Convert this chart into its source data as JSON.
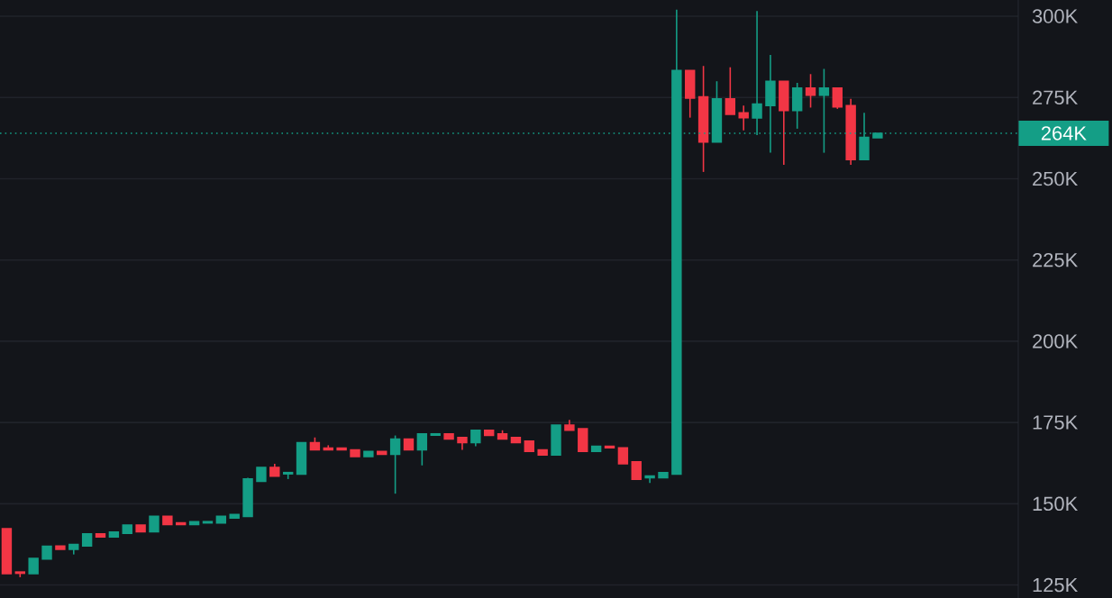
{
  "chart_data": {
    "type": "candlestick",
    "categories": [
      null,
      null,
      null,
      null,
      null,
      null,
      null,
      null,
      null,
      null,
      null,
      null,
      null,
      null,
      null,
      null,
      null,
      null,
      null,
      null,
      null,
      null,
      null,
      null,
      null,
      null,
      null,
      null,
      null,
      null,
      null,
      null,
      null,
      null,
      null,
      null,
      null,
      null,
      null,
      null,
      null,
      null,
      null,
      null,
      null,
      null,
      null,
      null,
      null,
      null,
      null,
      null,
      null,
      null,
      null,
      null,
      null,
      null,
      null,
      null,
      null,
      null,
      null,
      null,
      null,
      null,
      null,
      null,
      null,
      null,
      null,
      null,
      null,
      null,
      null,
      null
    ],
    "ohlc": [
      [
        142.3,
        142.3,
        128.5,
        128.5
      ],
      [
        129.0,
        129.0,
        127.4,
        128.6
      ],
      [
        128.5,
        133.2,
        128.5,
        133.2
      ],
      [
        133.0,
        136.9,
        133.0,
        136.9
      ],
      [
        137.0,
        137.0,
        136.0,
        136.0
      ],
      [
        136.0,
        137.5,
        134.4,
        137.5
      ],
      [
        137.0,
        140.7,
        137.0,
        140.7
      ],
      [
        140.7,
        140.7,
        139.8,
        139.8
      ],
      [
        139.8,
        141.3,
        139.8,
        141.3
      ],
      [
        140.9,
        143.4,
        140.9,
        143.4
      ],
      [
        143.4,
        143.4,
        141.4,
        141.4
      ],
      [
        141.4,
        146.1,
        141.4,
        146.1
      ],
      [
        146.1,
        146.1,
        143.6,
        143.6
      ],
      [
        144.1,
        144.1,
        143.6,
        143.6
      ],
      [
        143.6,
        144.5,
        143.6,
        144.5
      ],
      [
        144.1,
        144.5,
        144.1,
        144.5
      ],
      [
        144.1,
        146.1,
        144.1,
        146.1
      ],
      [
        145.6,
        146.7,
        145.6,
        146.7
      ],
      [
        146.1,
        158.0,
        146.1,
        157.6
      ],
      [
        156.9,
        161.2,
        156.9,
        161.2
      ],
      [
        161.2,
        162.3,
        158.5,
        158.5
      ],
      [
        159.2,
        159.6,
        157.6,
        159.6
      ],
      [
        159.1,
        168.8,
        159.1,
        168.8
      ],
      [
        168.8,
        170.4,
        166.6,
        166.6
      ],
      [
        167.1,
        168.0,
        166.6,
        166.6
      ],
      [
        167.1,
        167.1,
        166.6,
        166.6
      ],
      [
        166.6,
        166.6,
        164.5,
        164.5
      ],
      [
        164.5,
        166.1,
        164.5,
        166.1
      ],
      [
        166.1,
        166.1,
        165.2,
        165.2
      ],
      [
        165.2,
        171.0,
        153.1,
        169.9
      ],
      [
        169.9,
        169.9,
        166.6,
        166.6
      ],
      [
        166.6,
        171.5,
        161.8,
        171.5
      ],
      [
        171.1,
        171.5,
        171.1,
        171.5
      ],
      [
        171.5,
        171.5,
        169.9,
        169.9
      ],
      [
        170.4,
        170.4,
        166.6,
        168.8
      ],
      [
        168.8,
        172.6,
        167.7,
        172.6
      ],
      [
        172.6,
        172.6,
        171.0,
        171.0
      ],
      [
        171.5,
        172.6,
        169.9,
        169.9
      ],
      [
        170.4,
        170.4,
        168.8,
        168.8
      ],
      [
        169.3,
        169.3,
        166.1,
        166.1
      ],
      [
        166.6,
        166.6,
        165.0,
        165.0
      ],
      [
        165.0,
        174.2,
        165.0,
        174.2
      ],
      [
        174.2,
        175.8,
        172.6,
        172.6
      ],
      [
        173.1,
        173.1,
        166.1,
        166.1
      ],
      [
        166.1,
        167.7,
        166.1,
        167.7
      ],
      [
        167.7,
        167.7,
        167.2,
        167.2
      ],
      [
        167.2,
        167.2,
        162.3,
        162.3
      ],
      [
        162.9,
        162.9,
        157.5,
        157.5
      ],
      [
        158.0,
        158.5,
        156.4,
        158.5
      ],
      [
        158.0,
        159.6,
        158.0,
        159.6
      ],
      [
        159.1,
        302.0,
        159.1,
        283.3
      ],
      [
        283.3,
        283.3,
        268.8,
        274.8
      ],
      [
        275.2,
        284.7,
        252.1,
        261.3
      ],
      [
        261.3,
        280.0,
        261.3,
        274.6
      ],
      [
        274.6,
        284.3,
        269.8,
        269.8
      ],
      [
        270.3,
        272.5,
        264.9,
        268.8
      ],
      [
        268.7,
        301.6,
        263.4,
        273.0
      ],
      [
        272.5,
        288.1,
        258.0,
        280.0
      ],
      [
        280.0,
        280.0,
        254.3,
        271.0
      ],
      [
        271.0,
        279.5,
        265.4,
        277.9
      ],
      [
        277.9,
        282.2,
        271.9,
        275.7
      ],
      [
        275.7,
        283.8,
        258.0,
        277.9
      ],
      [
        277.9,
        277.9,
        271.5,
        272.1
      ],
      [
        272.5,
        274.6,
        254.3,
        255.9
      ],
      [
        255.9,
        270.3,
        255.9,
        262.7
      ],
      [
        262.6,
        264.0,
        262.6,
        264.0
      ],
      null,
      null,
      null,
      null,
      null,
      null,
      null,
      null,
      null,
      null
    ],
    "colors": [
      "#f23645",
      "#f23645",
      "#149e86",
      "#149e86",
      "#f23645",
      "#149e86",
      "#149e86",
      "#f23645",
      "#149e86",
      "#149e86",
      "#f23645",
      "#149e86",
      "#f23645",
      "#f23645",
      "#149e86",
      "#149e86",
      "#149e86",
      "#149e86",
      "#149e86",
      "#149e86",
      "#f23645",
      "#149e86",
      "#149e86",
      "#f23645",
      "#f23645",
      "#f23645",
      "#f23645",
      "#149e86",
      "#f23645",
      "#149e86",
      "#f23645",
      "#149e86",
      "#149e86",
      "#f23645",
      "#f23645",
      "#149e86",
      "#f23645",
      "#f23645",
      "#f23645",
      "#f23645",
      "#f23645",
      "#149e86",
      "#f23645",
      "#f23645",
      "#149e86",
      "#f23645",
      "#f23645",
      "#f23645",
      "#149e86",
      "#149e86",
      "#149e86",
      "#f23645",
      "#f23645",
      "#149e86",
      "#f23645",
      "#f23645",
      "#149e86",
      "#149e86",
      "#f23645",
      "#149e86",
      "#f23645",
      "#149e86",
      "#f23645",
      "#f23645",
      "#149e86",
      "#149e86",
      null,
      null,
      null,
      null,
      null,
      null,
      null,
      null,
      null,
      null
    ],
    "ylim": [
      121,
      305
    ],
    "yticks": [
      {
        "value": 125,
        "label": "125K"
      },
      {
        "value": 150,
        "label": "150K"
      },
      {
        "value": 175,
        "label": "175K"
      },
      {
        "value": 200,
        "label": "200K"
      },
      {
        "value": 225,
        "label": "225K"
      },
      {
        "value": 250,
        "label": "250K"
      },
      {
        "value": 275,
        "label": "275K"
      },
      {
        "value": 300,
        "label": "300K"
      }
    ],
    "grid": "y",
    "ref_lines": [
      {
        "axis": "y",
        "value": 264,
        "label": "264K",
        "color": "#149e86",
        "line_style": "dotted"
      }
    ]
  }
}
